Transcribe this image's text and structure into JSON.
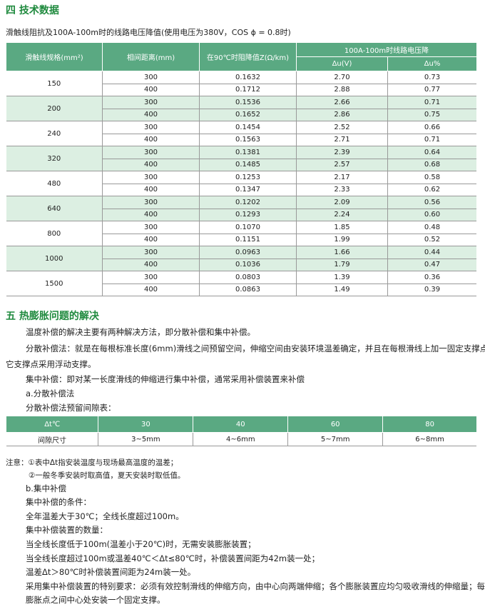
{
  "section4": {
    "title": "四 技术数据",
    "subtitle": "滑触线阻抗及100A-100m时的线路电压降值(使用电压为380V，COS ϕ = 0.8时)",
    "headers": {
      "spec": "滑触线规格(mm²)",
      "spacing": "相间距离(mm)",
      "impedance": "在90℃时阻降值Z(Ω/km)",
      "drop": "100A-100m时线路电压降",
      "du_v": "Δu(V)",
      "du_pct": "Δu%"
    },
    "rows": [
      {
        "spec": "150",
        "sub": [
          [
            "300",
            "0.1632",
            "2.70",
            "0.73"
          ],
          [
            "400",
            "0.1712",
            "2.88",
            "0.77"
          ]
        ]
      },
      {
        "spec": "200",
        "sub": [
          [
            "300",
            "0.1536",
            "2.66",
            "0.71"
          ],
          [
            "400",
            "0.1652",
            "2.86",
            "0.75"
          ]
        ]
      },
      {
        "spec": "240",
        "sub": [
          [
            "300",
            "0.1454",
            "2.52",
            "0.66"
          ],
          [
            "400",
            "0.1563",
            "2.71",
            "0.71"
          ]
        ]
      },
      {
        "spec": "320",
        "sub": [
          [
            "300",
            "0.1381",
            "2.39",
            "0.64"
          ],
          [
            "400",
            "0.1485",
            "2.57",
            "0.68"
          ]
        ]
      },
      {
        "spec": "480",
        "sub": [
          [
            "300",
            "0.1253",
            "2.17",
            "0.58"
          ],
          [
            "400",
            "0.1347",
            "2.33",
            "0.62"
          ]
        ]
      },
      {
        "spec": "640",
        "sub": [
          [
            "300",
            "0.1202",
            "2.09",
            "0.56"
          ],
          [
            "400",
            "0.1293",
            "2.24",
            "0.60"
          ]
        ]
      },
      {
        "spec": "800",
        "sub": [
          [
            "300",
            "0.1070",
            "1.85",
            "0.48"
          ],
          [
            "400",
            "0.1151",
            "1.99",
            "0.52"
          ]
        ]
      },
      {
        "spec": "1000",
        "sub": [
          [
            "300",
            "0.0963",
            "1.66",
            "0.44"
          ],
          [
            "400",
            "0.1036",
            "1.79",
            "0.47"
          ]
        ]
      },
      {
        "spec": "1500",
        "sub": [
          [
            "300",
            "0.0803",
            "1.39",
            "0.36"
          ],
          [
            "400",
            "0.0863",
            "1.49",
            "0.39"
          ]
        ]
      }
    ]
  },
  "section5": {
    "title": "五 热膨胀问题的解决",
    "p1": "温度补偿的解决主要有两种解决方法，即分散补偿和集中补偿。",
    "p2a": "分散补偿法：就是在每根标准长度(6mm)滑线之间预留空间，伸缩空间由安装环境温差确定，并且在每根滑线上加一固定支撑点，其",
    "p2b": "它支撑点采用浮动支撑。",
    "p3": "集中补偿：即对某一长度滑线的伸缩进行集中补偿，通常采用补偿装置来补偿",
    "p4": "a.分散补偿法",
    "p5": "分散补偿法预留间隙表：",
    "gap_table": {
      "header": [
        "Δt℃",
        "30",
        "40",
        "60",
        "80"
      ],
      "row": [
        "间隙尺寸",
        "3~5mm",
        "4~6mm",
        "5~7mm",
        "6~8mm"
      ]
    },
    "lines": [
      "注意：①表中Δt指安装温度与现场最高温度的温差；",
      "②一般冬季安装时取高值，夏天安装时取低值。",
      "b.集中补偿",
      "集中补偿的条件：",
      "全年温差大于30℃；全线长度超过100m。",
      "集中补偿装置的数量：",
      "当全线长度低于100m(温差小于20℃)时，无需安装膨胀装置；",
      "当全线长度超过100m或温差40℃＜Δt≤80℃时，补偿装置间距为42m装一处；",
      "温差Δt＞80℃时补偿装置间距为24m装一处。",
      "采用集中补偿装置的特别要求：必须有效控制滑线的伸缩方向，由中心向两端伸缩；各个膨胀装置应均匀吸收滑线的伸缩量；每两个",
      "膨胀点之间中心处安装一个固定支撑。"
    ]
  },
  "colors": {
    "heading": "#1f8a3e",
    "table_header": "#5aa982",
    "band": "#dcefe2"
  }
}
